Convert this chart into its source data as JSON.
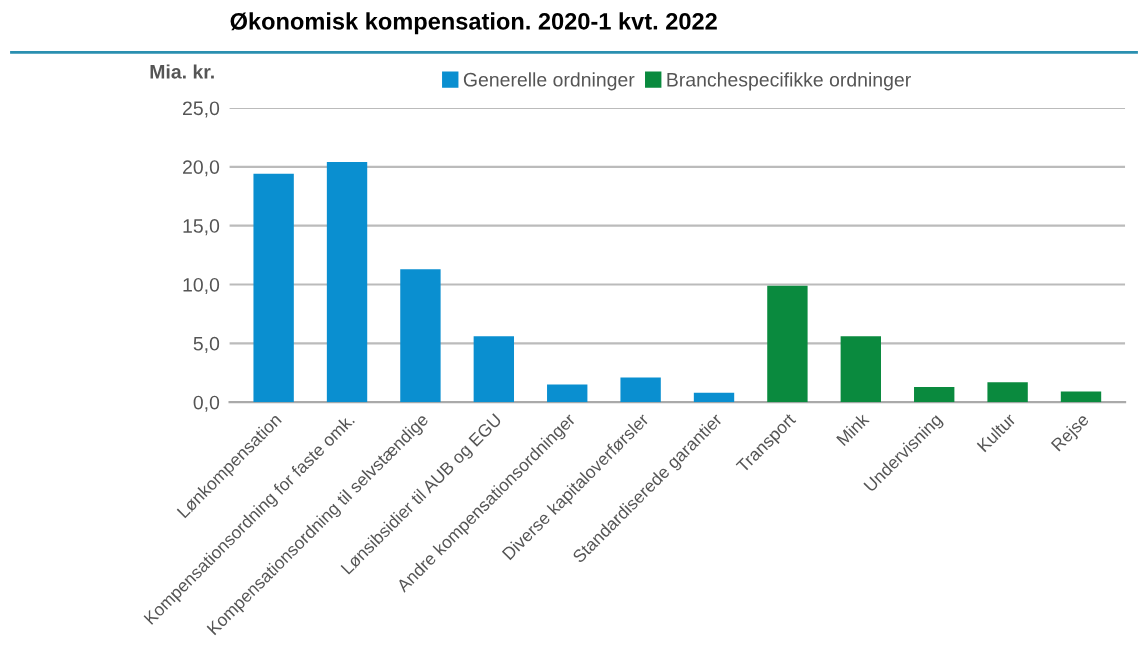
{
  "chart_data": {
    "type": "bar",
    "title": "Økonomisk kompensation. 2020-1 kvt. 2022",
    "ylabel": "Mia. kr.",
    "categories": [
      "Lønkompensation",
      "Kompensationsordning for faste omk.",
      "Kompensationsordning til selvstændige",
      "Lønsibsidier til AUB og EGU",
      "Andre kompensationsordninger",
      "Diverse kapitaloverførsler",
      "Standardiserede garantier",
      "Transport",
      "Mink",
      "Undervisning",
      "Kultur",
      "Rejse"
    ],
    "series": [
      {
        "name": "Generelle ordninger",
        "color": "#0a8fd0",
        "values": [
          19.4,
          20.4,
          11.3,
          5.6,
          1.5,
          2.1,
          0.8,
          null,
          null,
          null,
          null,
          null
        ]
      },
      {
        "name": "Branchespecifikke ordninger",
        "color": "#0a8a3e",
        "values": [
          null,
          null,
          null,
          null,
          null,
          null,
          null,
          9.9,
          5.6,
          1.3,
          1.7,
          0.9
        ]
      }
    ],
    "ylim": [
      0,
      25
    ],
    "yticks": [
      {
        "value": 0,
        "label": "0,0"
      },
      {
        "value": 5,
        "label": "5,0"
      },
      {
        "value": 10,
        "label": "10,0"
      },
      {
        "value": 15,
        "label": "15,0"
      },
      {
        "value": 20,
        "label": "20,0"
      },
      {
        "value": 25,
        "label": "25,0"
      }
    ],
    "grid": "y",
    "legend": "top"
  }
}
